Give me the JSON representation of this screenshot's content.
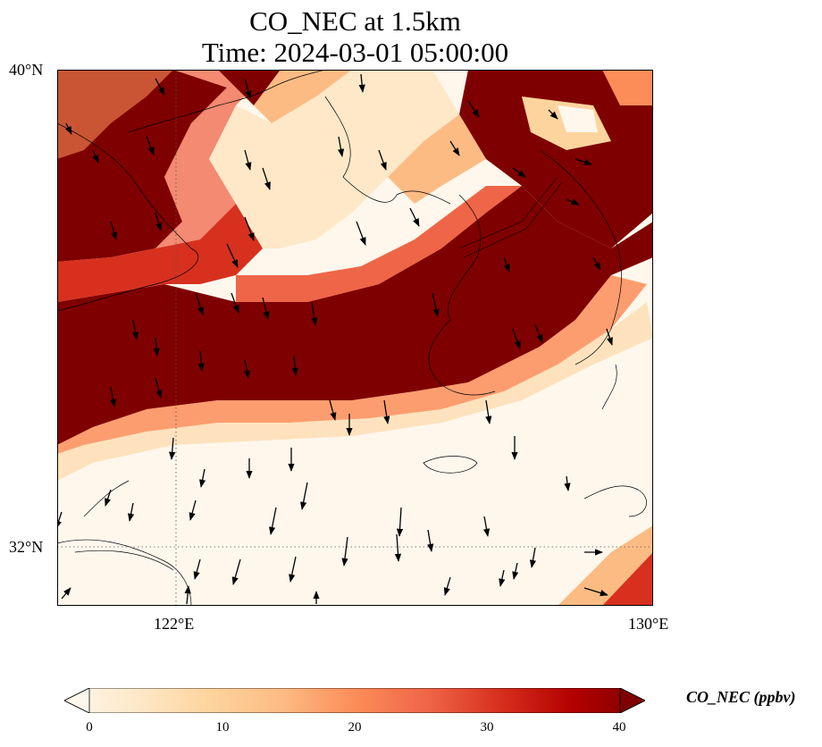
{
  "title": {
    "line1": "CO_NEC at 1.5km",
    "line2": "Time: 2024-03-01 05:00:00"
  },
  "map": {
    "lat_labels": [
      "40°N",
      "32°N"
    ],
    "lon_labels": [
      "122°E",
      "130°E"
    ],
    "extent": {
      "lon_min": 120,
      "lon_max": 130,
      "lat_min": 31,
      "lat_max": 40
    },
    "gridlines": {
      "lon": [
        122
      ],
      "lat": [
        32
      ],
      "style": "dotted"
    },
    "field": "CO_NEC concentration (ppbv) with wind vectors at 1.5 km",
    "features": [
      "coastlines",
      "wind vectors"
    ]
  },
  "colorbar": {
    "label": "CO_NEC (ppbv)",
    "ticks": [
      "0",
      "10",
      "20",
      "30",
      "40"
    ],
    "min": 0,
    "max": 40,
    "colormap": "OrRd",
    "colors": [
      "#fff7ec",
      "#fee8c8",
      "#fdd49e",
      "#fdbb84",
      "#fc8d59",
      "#ef6548",
      "#d7301f",
      "#b30000",
      "#7f0000"
    ],
    "extend": "both"
  }
}
